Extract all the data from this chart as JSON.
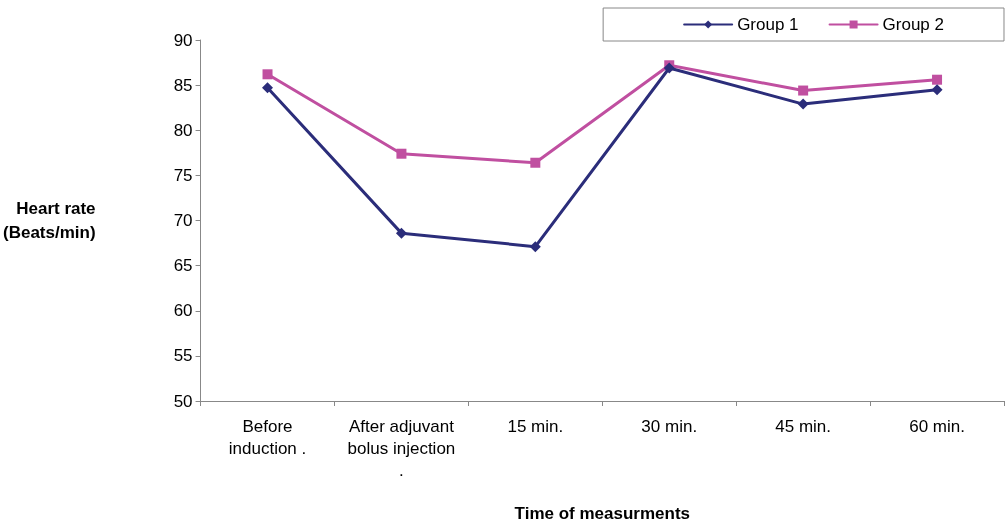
{
  "chart_data": {
    "type": "line",
    "xlabel": "Time of measurments",
    "ylabel": "Heart rate\n(Beats/min)",
    "categories": [
      "Before\ninduction .",
      "After adjuvant\nbolus injection\n.",
      "15 min.",
      "30 min.",
      "45 min.",
      "60 min."
    ],
    "series": [
      {
        "name": "Group 1",
        "color": "#2b2d7a",
        "marker": "diamond",
        "values": [
          84.7,
          68.6,
          67.1,
          86.9,
          82.9,
          84.5
        ]
      },
      {
        "name": "Group 2",
        "color": "#c04fa0",
        "marker": "square",
        "values": [
          86.2,
          77.4,
          76.4,
          87.2,
          84.4,
          85.6
        ]
      }
    ],
    "ylim": [
      50,
      90
    ],
    "yticks": [
      50,
      55,
      60,
      65,
      70,
      75,
      80,
      85,
      90
    ],
    "grid": false,
    "legend": "top right",
    "line_style": "solid"
  }
}
